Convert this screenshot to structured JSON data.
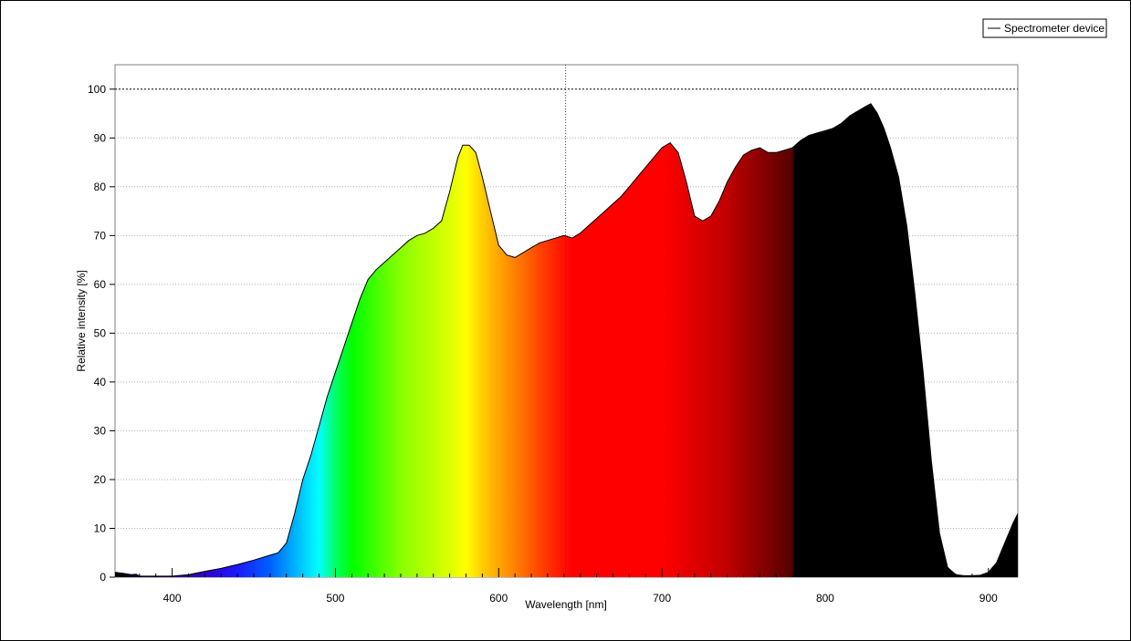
{
  "chart_data": {
    "type": "area",
    "xlabel": "Wavelength [nm]",
    "ylabel": "Relative intensity [%]",
    "xlim": [
      365,
      918
    ],
    "ylim": [
      0,
      105
    ],
    "xticks": [
      400,
      500,
      600,
      700,
      800,
      900
    ],
    "yticks": [
      0,
      10,
      20,
      30,
      40,
      50,
      60,
      70,
      80,
      90,
      100
    ],
    "grid": true,
    "reference_line_y": 100,
    "cursor_x": 641,
    "legend_position": "top-right",
    "series": [
      {
        "name": "Spectrometer device",
        "x": [
          365,
          370,
          375,
          378,
          380,
          390,
          400,
          410,
          420,
          430,
          440,
          450,
          460,
          465,
          470,
          475,
          480,
          485,
          490,
          495,
          500,
          505,
          510,
          515,
          520,
          525,
          530,
          535,
          540,
          545,
          550,
          555,
          560,
          565,
          570,
          575,
          578,
          582,
          586,
          590,
          595,
          600,
          605,
          610,
          615,
          620,
          625,
          630,
          635,
          640,
          645,
          650,
          655,
          660,
          665,
          670,
          675,
          680,
          685,
          690,
          695,
          700,
          705,
          710,
          715,
          720,
          725,
          730,
          735,
          740,
          745,
          750,
          755,
          760,
          765,
          770,
          775,
          780,
          785,
          790,
          795,
          800,
          805,
          810,
          815,
          820,
          825,
          828,
          832,
          836,
          840,
          845,
          850,
          855,
          860,
          865,
          870,
          875,
          880,
          885,
          890,
          895,
          900,
          905,
          910,
          915,
          918
        ],
        "values": [
          1,
          0.8,
          0.5,
          0.6,
          0.2,
          0.2,
          0.2,
          0.5,
          1.2,
          1.8,
          2.6,
          3.5,
          4.5,
          5,
          7,
          13,
          20,
          25,
          31,
          37,
          42,
          47,
          52,
          57,
          61,
          63,
          64.5,
          66,
          67.5,
          69,
          70,
          70.5,
          71.5,
          73,
          79,
          86,
          88.5,
          88.5,
          87,
          82,
          75,
          68,
          66,
          65.5,
          66.5,
          67.5,
          68.5,
          69,
          69.5,
          70,
          69.5,
          70.5,
          72,
          73.5,
          75,
          76.5,
          78,
          80,
          82,
          84,
          86,
          88,
          89,
          87,
          81,
          74,
          73,
          74,
          77,
          81,
          84,
          86.5,
          87.5,
          88,
          87,
          87,
          87.5,
          88,
          89.5,
          90.5,
          91,
          91.5,
          92,
          93,
          94.5,
          95.5,
          96.5,
          97,
          95,
          92,
          88,
          82,
          72,
          58,
          42,
          24,
          9,
          2,
          0.5,
          0.3,
          0.3,
          0.4,
          1,
          3,
          7,
          11,
          13
        ]
      }
    ]
  }
}
